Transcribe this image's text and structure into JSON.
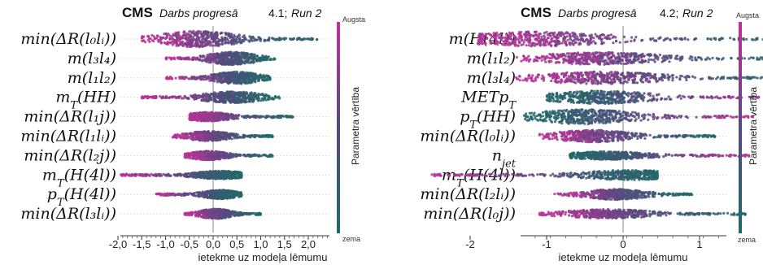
{
  "colors": {
    "high": "#c2309a",
    "low": "#1f6b66",
    "mid": "#544a7e",
    "zero_line": "#8a8a8a",
    "grid": "#cccccc"
  },
  "chart_data": [
    {
      "type": "beeswarm",
      "cms_label": "CMS",
      "progress_label": "Darbs progresā",
      "run_label_prefix": "4.1;",
      "run_label": "Run 2",
      "xlabel": "ietekme uz modeļa lēmumu",
      "colorbar": {
        "title": "Parametra vērtība",
        "high": "Augsta",
        "low": "zema"
      },
      "xlim": [
        -2.0,
        2.5
      ],
      "xticks": [
        "-2,0",
        "-1,5",
        "-1,0",
        "-0,5",
        "0,0",
        "0,5",
        "1,0",
        "1,5",
        "2,0"
      ],
      "xtick_values": [
        -2.0,
        -1.5,
        -1.0,
        -0.5,
        0.0,
        0.5,
        1.0,
        1.5,
        2.0
      ],
      "features": [
        {
          "label": "min(ΔR(l₀lᵢ))",
          "range": [
            -1.5,
            2.2
          ],
          "peak_x": -0.3,
          "peak_h": 1.0,
          "low_side": "right"
        },
        {
          "label": "m(l₃l₄)",
          "range": [
            -1.0,
            1.3
          ],
          "peak_x": 0.4,
          "peak_h": 0.8,
          "low_side": "right"
        },
        {
          "label": "m(l₁l₂)",
          "range": [
            -1.0,
            1.2
          ],
          "peak_x": 0.5,
          "peak_h": 0.75,
          "low_side": "right"
        },
        {
          "label": "m_T(HH)",
          "range": [
            -1.5,
            1.4
          ],
          "peak_x": 0.4,
          "peak_h": 0.7,
          "low_side": "right"
        },
        {
          "label": "min(ΔR(l₁j))",
          "range": [
            -0.5,
            1.7
          ],
          "peak_x": -0.1,
          "peak_h": 0.55,
          "low_side": "right"
        },
        {
          "label": "min(ΔR(l₁lᵢ))",
          "range": [
            -0.9,
            1.25
          ],
          "peak_x": -0.1,
          "peak_h": 0.6,
          "low_side": "right"
        },
        {
          "label": "min(ΔR(l₂j))",
          "range": [
            -0.6,
            1.25
          ],
          "peak_x": -0.1,
          "peak_h": 0.55,
          "low_side": "right"
        },
        {
          "label": "m_T(H(4l))",
          "range": [
            -1.95,
            0.6
          ],
          "peak_x": 0.15,
          "peak_h": 0.5,
          "low_side": "right"
        },
        {
          "label": "p_T(H(4l))",
          "range": [
            -1.2,
            0.6
          ],
          "peak_x": 0.15,
          "peak_h": 0.55,
          "low_side": "right"
        },
        {
          "label": "min(ΔR(l₃lᵢ))",
          "range": [
            -0.6,
            1.0
          ],
          "peak_x": 0.05,
          "peak_h": 0.6,
          "low_side": "right"
        }
      ]
    },
    {
      "type": "beeswarm",
      "cms_label": "CMS",
      "progress_label": "Darbs progresā",
      "run_label_prefix": "4.2;",
      "run_label": "Run 2",
      "xlabel": "ietekme uz modeļa lēmumu",
      "colorbar": {
        "title": "Parametra vērtība",
        "high": "Augsta",
        "low": "zema"
      },
      "xlim": [
        -2.75,
        2.75
      ],
      "xticks": [
        "-2",
        "-1",
        "0",
        "1",
        "2"
      ],
      "xtick_values": [
        -2,
        -1,
        0,
        1,
        2
      ],
      "features": [
        {
          "label": "m(H(4l))",
          "range": [
            -1.9,
            2.4
          ],
          "peak_x": -1.1,
          "peak_h": 0.9,
          "low_side": "right"
        },
        {
          "label": "m(l₁l₂)",
          "range": [
            -1.4,
            2.3
          ],
          "peak_x": -0.3,
          "peak_h": 0.75,
          "low_side": "right"
        },
        {
          "label": "m(l₃l₄)",
          "range": [
            -1.4,
            2.3
          ],
          "peak_x": -0.3,
          "peak_h": 0.75,
          "low_side": "right"
        },
        {
          "label": "METp_T",
          "range": [
            -1.0,
            2.0
          ],
          "peak_x": -0.3,
          "peak_h": 0.8,
          "low_side": "left"
        },
        {
          "label": "p_T(HH)",
          "range": [
            -1.3,
            1.7
          ],
          "peak_x": -0.5,
          "peak_h": 0.9,
          "low_side": "left"
        },
        {
          "label": "min(ΔR(l₀lᵢ))",
          "range": [
            -1.1,
            1.2
          ],
          "peak_x": -0.4,
          "peak_h": 0.75,
          "low_side": "right"
        },
        {
          "label": "n_jet",
          "range": [
            -0.7,
            1.65
          ],
          "peak_x": -0.2,
          "peak_h": 0.5,
          "low_side": "left"
        },
        {
          "label": "m_T(H(4l))",
          "range": [
            -2.5,
            0.45
          ],
          "peak_x": 0.1,
          "peak_h": 0.6,
          "low_side": "right"
        },
        {
          "label": "min(ΔR(l₂lᵢ))",
          "range": [
            -0.9,
            0.9
          ],
          "peak_x": -0.1,
          "peak_h": 0.65,
          "low_side": "right"
        },
        {
          "label": "min(ΔR(l₀j))",
          "range": [
            -1.1,
            1.6
          ],
          "peak_x": -0.2,
          "peak_h": 0.55,
          "low_side": "right"
        }
      ]
    }
  ]
}
